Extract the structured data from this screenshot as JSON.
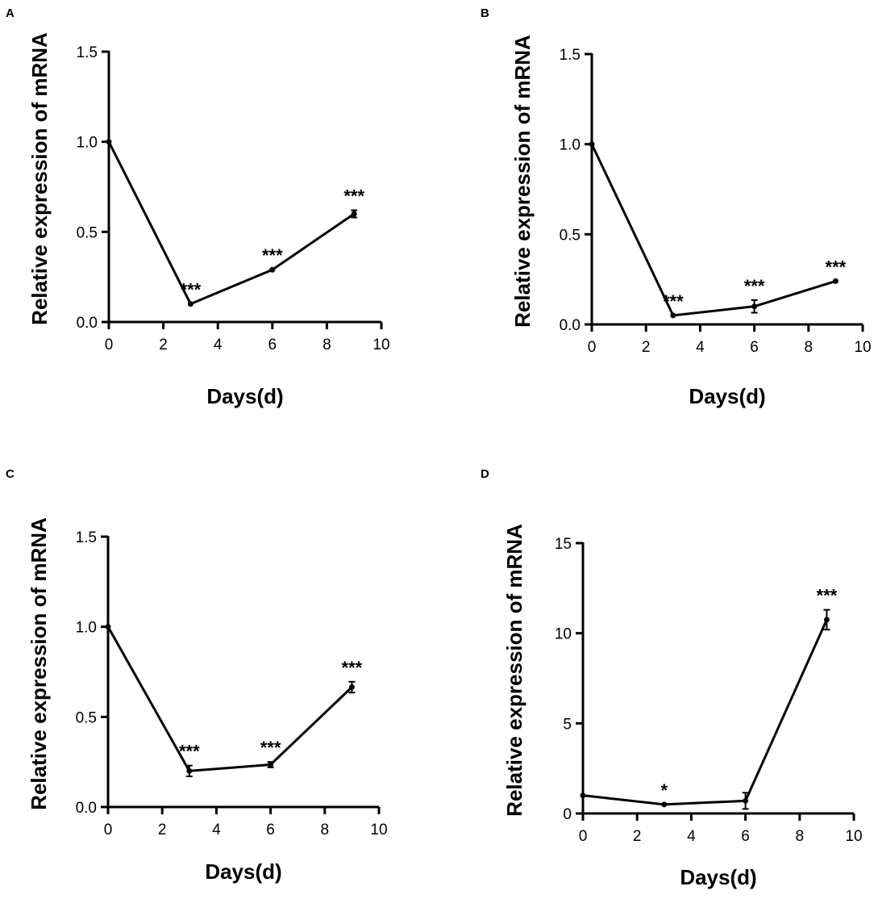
{
  "chart_data": [
    {
      "panel": "A",
      "type": "line",
      "xlabel": "Days(d)",
      "ylabel": "Relative expression of mRNA",
      "xlim": [
        0,
        10
      ],
      "ylim": [
        0,
        1.5
      ],
      "xticks": [
        0,
        2,
        4,
        6,
        8,
        10
      ],
      "yticks": [
        0.0,
        0.5,
        1.0,
        1.5
      ],
      "ytick_labels": [
        "0.0",
        "0.5",
        "1.0",
        "1.5"
      ],
      "series": [
        {
          "name": "mRNA",
          "x": [
            0,
            3,
            6,
            9
          ],
          "values": [
            1.0,
            0.1,
            0.29,
            0.6
          ],
          "errors": [
            0,
            0,
            0,
            0.02
          ]
        }
      ],
      "significance": [
        "",
        "***",
        "***",
        "***"
      ]
    },
    {
      "panel": "B",
      "type": "line",
      "xlabel": "Days(d)",
      "ylabel": "Relative expression of mRNA",
      "xlim": [
        0,
        10
      ],
      "ylim": [
        0,
        1.5
      ],
      "xticks": [
        0,
        2,
        4,
        6,
        8,
        10
      ],
      "yticks": [
        0.0,
        0.5,
        1.0,
        1.5
      ],
      "ytick_labels": [
        "0.0",
        "0.5",
        "1.0",
        "1.5"
      ],
      "series": [
        {
          "name": "mRNA",
          "x": [
            0,
            3,
            6,
            9
          ],
          "values": [
            1.0,
            0.05,
            0.1,
            0.24
          ],
          "errors": [
            0,
            0,
            0.035,
            0
          ]
        }
      ],
      "significance": [
        "",
        "***",
        "***",
        "***"
      ]
    },
    {
      "panel": "C",
      "type": "line",
      "xlabel": "Days(d)",
      "ylabel": "Relative expression of mRNA",
      "xlim": [
        0,
        10
      ],
      "ylim": [
        0,
        1.5
      ],
      "xticks": [
        0,
        2,
        4,
        6,
        8,
        10
      ],
      "yticks": [
        0.0,
        0.5,
        1.0,
        1.5
      ],
      "ytick_labels": [
        "0.0",
        "0.5",
        "1.0",
        "1.5"
      ],
      "series": [
        {
          "name": "mRNA",
          "x": [
            0,
            3,
            6,
            9
          ],
          "values": [
            1.0,
            0.2,
            0.235,
            0.665
          ],
          "errors": [
            0,
            0.03,
            0.015,
            0.03
          ]
        }
      ],
      "significance": [
        "",
        "***",
        "***",
        "***"
      ]
    },
    {
      "panel": "D",
      "type": "line",
      "xlabel": "Days(d)",
      "ylabel": "Relative expression of mRNA",
      "xlim": [
        0,
        10
      ],
      "ylim": [
        0,
        15
      ],
      "xticks": [
        0,
        2,
        4,
        6,
        8,
        10
      ],
      "yticks": [
        0,
        5,
        10,
        15
      ],
      "ytick_labels": [
        "0",
        "5",
        "10",
        "15"
      ],
      "series": [
        {
          "name": "mRNA",
          "x": [
            0,
            3,
            6,
            9
          ],
          "values": [
            1.0,
            0.5,
            0.7,
            10.75
          ],
          "errors": [
            0,
            0,
            0.45,
            0.55
          ]
        }
      ],
      "significance": [
        "",
        "*",
        "",
        "***"
      ]
    }
  ]
}
